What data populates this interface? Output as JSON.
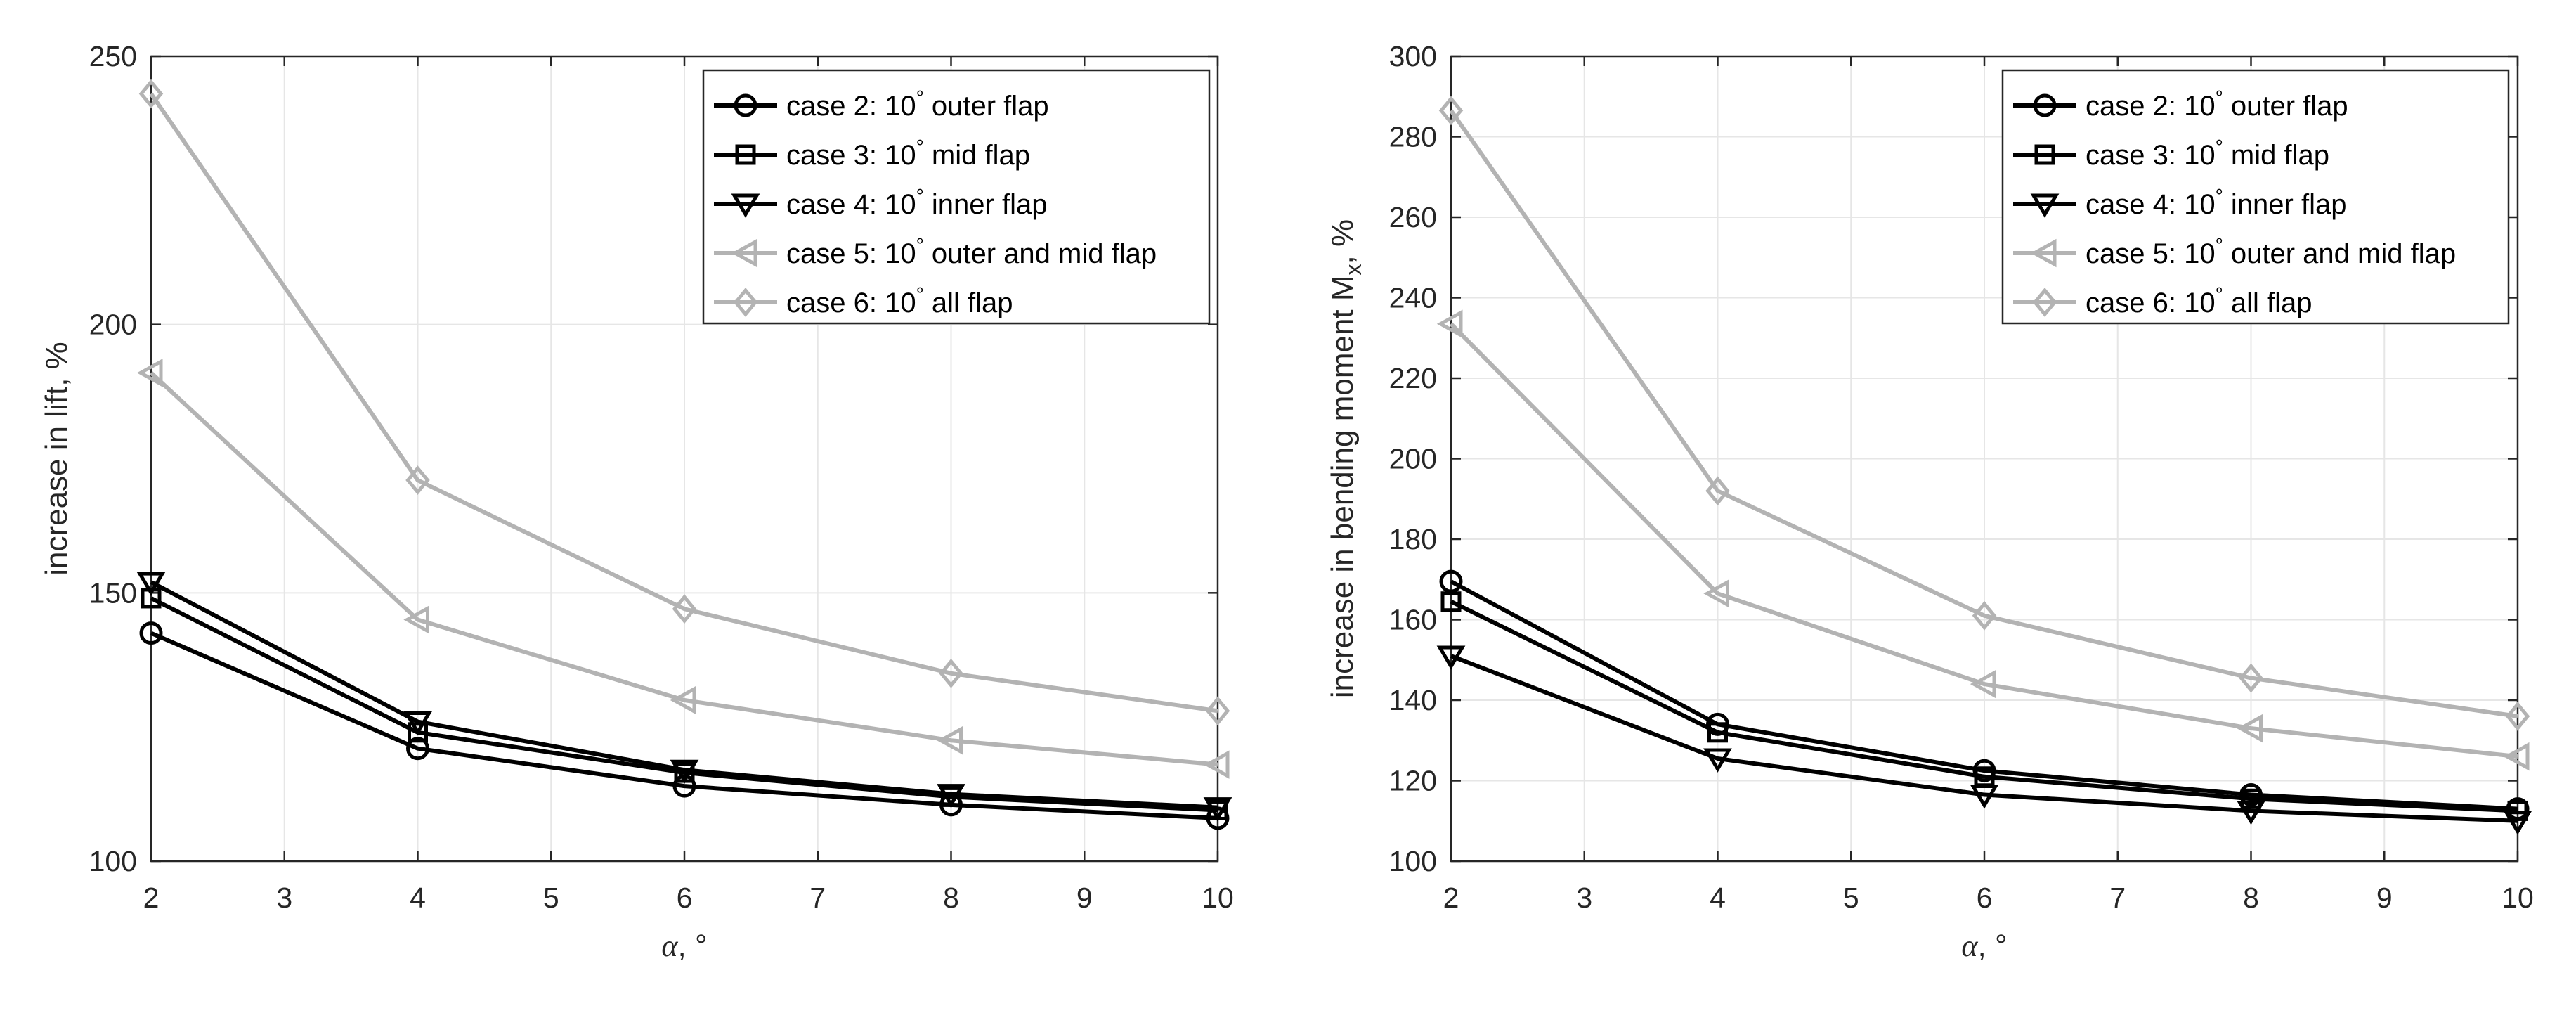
{
  "chart_data": [
    {
      "type": "line",
      "title": "",
      "xlabel": "α, °",
      "xlabel_symbol": "α",
      "xlabel_unit": ", °",
      "ylabel": "increase in lift, %",
      "ylabel_main": "increase in lift, %",
      "ylabel_sub": "",
      "ylabel_tail": "",
      "xlim": [
        2,
        10
      ],
      "ylim": [
        100,
        250
      ],
      "xticks": [
        2,
        3,
        4,
        5,
        6,
        7,
        8,
        9,
        10
      ],
      "yticks": [
        100,
        150,
        200,
        250
      ],
      "grid": true,
      "legend_position": "top-right",
      "x": [
        2,
        4,
        6,
        8,
        10
      ],
      "series": [
        {
          "name": "case 2: 10° outer flap",
          "label_prefix": "case 2: 10",
          "label_suffix": " outer flap",
          "marker": "circle",
          "color": "#000000",
          "values": [
            142.5,
            121,
            114,
            110.5,
            108
          ]
        },
        {
          "name": "case 3: 10° mid flap",
          "label_prefix": "case 3: 10",
          "label_suffix": " mid flap",
          "marker": "square",
          "color": "#000000",
          "values": [
            149,
            124,
            116.5,
            112,
            109.5
          ]
        },
        {
          "name": "case 4: 10° inner flap",
          "label_prefix": "case 4: 10",
          "label_suffix": " inner flap",
          "marker": "triangle-down",
          "color": "#000000",
          "values": [
            152,
            126,
            117,
            112.5,
            110
          ]
        },
        {
          "name": "case 5: 10° outer and mid flap",
          "label_prefix": "case 5: 10",
          "label_suffix": " outer and mid flap",
          "marker": "triangle-left",
          "color": "#b3b3b3",
          "values": [
            191,
            145,
            130,
            122.5,
            118
          ]
        },
        {
          "name": "case 6: 10° all flap",
          "label_prefix": "case 6: 10",
          "label_suffix": " all flap",
          "marker": "diamond",
          "color": "#b3b3b3",
          "values": [
            243,
            171,
            147,
            135,
            128
          ]
        }
      ]
    },
    {
      "type": "line",
      "title": "",
      "xlabel": "α, °",
      "xlabel_symbol": "α",
      "xlabel_unit": ", °",
      "ylabel": "increase in bending moment Mx, %",
      "ylabel_main": "increase in bending moment M",
      "ylabel_sub": "x",
      "ylabel_tail": ", %",
      "xlim": [
        2,
        10
      ],
      "ylim": [
        100,
        300
      ],
      "xticks": [
        2,
        3,
        4,
        5,
        6,
        7,
        8,
        9,
        10
      ],
      "yticks": [
        100,
        120,
        140,
        160,
        180,
        200,
        220,
        240,
        260,
        280,
        300
      ],
      "grid": true,
      "legend_position": "top-right",
      "x": [
        2,
        4,
        6,
        8,
        10
      ],
      "series": [
        {
          "name": "case 2: 10° outer flap",
          "label_prefix": "case 2: 10",
          "label_suffix": " outer flap",
          "marker": "circle",
          "color": "#000000",
          "values": [
            169.5,
            134,
            122.5,
            116.5,
            113
          ]
        },
        {
          "name": "case 3: 10° mid flap",
          "label_prefix": "case 3: 10",
          "label_suffix": " mid flap",
          "marker": "square",
          "color": "#000000",
          "values": [
            164.5,
            132,
            121,
            115.5,
            112.5
          ]
        },
        {
          "name": "case 4: 10° inner flap",
          "label_prefix": "case 4: 10",
          "label_suffix": " inner flap",
          "marker": "triangle-down",
          "color": "#000000",
          "values": [
            151,
            125.5,
            116.5,
            112.5,
            110
          ]
        },
        {
          "name": "case 5: 10° outer and mid flap",
          "label_prefix": "case 5: 10",
          "label_suffix": " outer and mid flap",
          "marker": "triangle-left",
          "color": "#b3b3b3",
          "values": [
            233.5,
            166.5,
            144,
            133,
            126
          ]
        },
        {
          "name": "case 6: 10° all flap",
          "label_prefix": "case 6: 10",
          "label_suffix": " all flap",
          "marker": "diamond",
          "color": "#b3b3b3",
          "values": [
            286.5,
            192,
            161,
            145.5,
            136
          ]
        }
      ]
    }
  ],
  "styles": {
    "axis_color": "#262626",
    "grid_color": "#e6e6e6",
    "dark_series": "#000000",
    "light_series": "#b3b3b3"
  }
}
